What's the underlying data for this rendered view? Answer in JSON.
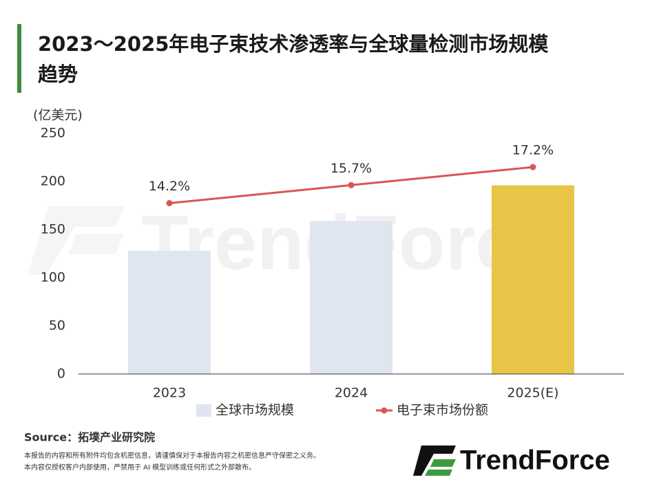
{
  "chart_data": {
    "type": "bar-line",
    "title_lines": [
      "2023～2025年电子束技术渗透率与全球量检测市场规模",
      "趋势"
    ],
    "y_unit": "(亿美元)",
    "categories": [
      "2023",
      "2024",
      "2025(E)"
    ],
    "series": [
      {
        "name": "全球市场规模",
        "type": "bar",
        "color": "#dfe6ef",
        "colors": [
          "#dfe6ef",
          "#dfe6ef",
          "#e8c547"
        ],
        "values": [
          128,
          159,
          196
        ]
      },
      {
        "name": "电子束市场份额",
        "type": "line",
        "axis": "y2",
        "color": "#dc5454",
        "values": [
          14.2,
          15.7,
          17.2
        ],
        "value_labels": [
          "14.2%",
          "15.7%",
          "17.2%"
        ]
      }
    ],
    "ylim": [
      0,
      250
    ],
    "yticks": [
      0,
      50,
      100,
      150,
      200,
      250
    ],
    "y2lim": [
      0,
      20
    ],
    "source": "Source：拓墣产业研究院",
    "disclaimer": [
      "本报告的内容和所有附件均包含机密信息，请谨慎保对于本报告内容之机密信息严守保密之义务。",
      "本内容仅授权客户内部使用，严禁用于 AI 模型训练或任何形式之外部散布。"
    ],
    "logo": "TrendForce"
  }
}
